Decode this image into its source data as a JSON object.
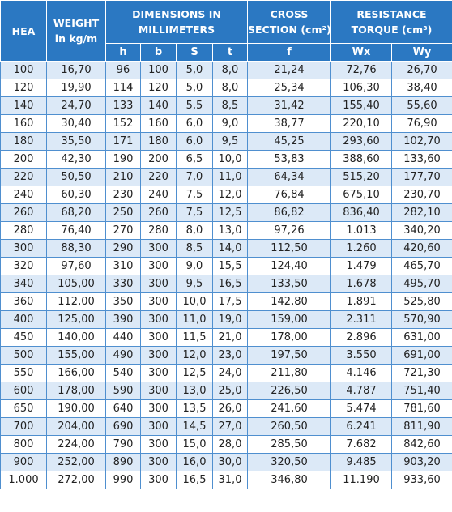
{
  "header": {
    "top": [
      {
        "lines": [
          "HEA"
        ]
      },
      {
        "lines": [
          "WEIGHT",
          "in kg/m"
        ]
      },
      {
        "lines": [
          "DIMENSIONS IN",
          "MILLIMETERS"
        ]
      },
      {
        "lines": [
          "CROSS",
          "SECTION  (cm²)"
        ]
      },
      {
        "lines": [
          "RESISTANCE",
          "TORQUE (cm³)"
        ]
      }
    ],
    "sub": [
      "h",
      "b",
      "S",
      "t",
      "f",
      "Wx",
      "Wy"
    ]
  },
  "table": {
    "rows": [
      [
        "100",
        "16,70",
        "96",
        "100",
        "5,0",
        "8,0",
        "21,24",
        "72,76",
        "26,70"
      ],
      [
        "120",
        "19,90",
        "114",
        "120",
        "5,0",
        "8,0",
        "25,34",
        "106,30",
        "38,40"
      ],
      [
        "140",
        "24,70",
        "133",
        "140",
        "5,5",
        "8,5",
        "31,42",
        "155,40",
        "55,60"
      ],
      [
        "160",
        "30,40",
        "152",
        "160",
        "6,0",
        "9,0",
        "38,77",
        "220,10",
        "76,90"
      ],
      [
        "180",
        "35,50",
        "171",
        "180",
        "6,0",
        "9,5",
        "45,25",
        "293,60",
        "102,70"
      ],
      [
        "200",
        "42,30",
        "190",
        "200",
        "6,5",
        "10,0",
        "53,83",
        "388,60",
        "133,60"
      ],
      [
        "220",
        "50,50",
        "210",
        "220",
        "7,0",
        "11,0",
        "64,34",
        "515,20",
        "177,70"
      ],
      [
        "240",
        "60,30",
        "230",
        "240",
        "7,5",
        "12,0",
        "76,84",
        "675,10",
        "230,70"
      ],
      [
        "260",
        "68,20",
        "250",
        "260",
        "7,5",
        "12,5",
        "86,82",
        "836,40",
        "282,10"
      ],
      [
        "280",
        "76,40",
        "270",
        "280",
        "8,0",
        "13,0",
        "97,26",
        "1.013",
        "340,20"
      ],
      [
        "300",
        "88,30",
        "290",
        "300",
        "8,5",
        "14,0",
        "112,50",
        "1.260",
        "420,60"
      ],
      [
        "320",
        "97,60",
        "310",
        "300",
        "9,0",
        "15,5",
        "124,40",
        "1.479",
        "465,70"
      ],
      [
        "340",
        "105,00",
        "330",
        "300",
        "9,5",
        "16,5",
        "133,50",
        "1.678",
        "495,70"
      ],
      [
        "360",
        "112,00",
        "350",
        "300",
        "10,0",
        "17,5",
        "142,80",
        "1.891",
        "525,80"
      ],
      [
        "400",
        "125,00",
        "390",
        "300",
        "11,0",
        "19,0",
        "159,00",
        "2.311",
        "570,90"
      ],
      [
        "450",
        "140,00",
        "440",
        "300",
        "11,5",
        "21,0",
        "178,00",
        "2.896",
        "631,00"
      ],
      [
        "500",
        "155,00",
        "490",
        "300",
        "12,0",
        "23,0",
        "197,50",
        "3.550",
        "691,00"
      ],
      [
        "550",
        "166,00",
        "540",
        "300",
        "12,5",
        "24,0",
        "211,80",
        "4.146",
        "721,30"
      ],
      [
        "600",
        "178,00",
        "590",
        "300",
        "13,0",
        "25,0",
        "226,50",
        "4.787",
        "751,40"
      ],
      [
        "650",
        "190,00",
        "640",
        "300",
        "13,5",
        "26,0",
        "241,60",
        "5.474",
        "781,60"
      ],
      [
        "700",
        "204,00",
        "690",
        "300",
        "14,5",
        "27,0",
        "260,50",
        "6.241",
        "811,90"
      ],
      [
        "800",
        "224,00",
        "790",
        "300",
        "15,0",
        "28,0",
        "285,50",
        "7.682",
        "842,60"
      ],
      [
        "900",
        "252,00",
        "890",
        "300",
        "16,0",
        "30,0",
        "320,50",
        "9.485",
        "903,20"
      ],
      [
        "1.000",
        "272,00",
        "990",
        "300",
        "16,5",
        "31,0",
        "346,80",
        "11.190",
        "933,60"
      ]
    ]
  }
}
